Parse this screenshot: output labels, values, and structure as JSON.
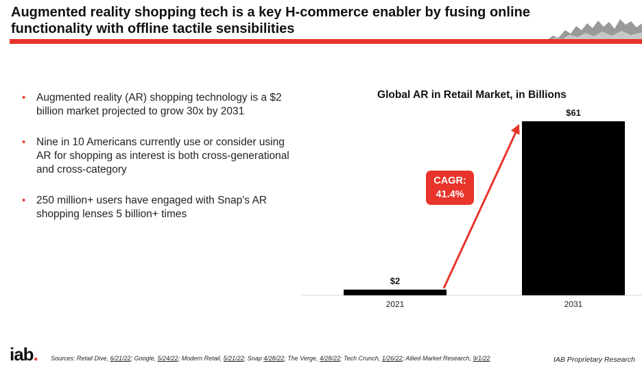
{
  "slide": {
    "title": "Augmented reality shopping tech is a key H-commerce enabler by fusing online functionality with offline tactile sensibilities",
    "accent_color": "#e8342a"
  },
  "bullets": [
    "Augmented reality (AR) shopping technology is a $2 billion market projected to grow 30x by 2031",
    "Nine in 10 Americans currently use or consider using AR for shopping as interest is both cross-generational and cross-category",
    "250 million+ users have engaged with Snap's AR shopping lenses 5 billion+ times"
  ],
  "chart_data": {
    "type": "bar",
    "title": "Global AR in Retail Market, in Billions",
    "categories": [
      "2021",
      "2031"
    ],
    "values": [
      2,
      61
    ],
    "data_labels": [
      "$2",
      "$61"
    ],
    "xlabel": "",
    "ylabel": "",
    "ylim": [
      0,
      61
    ],
    "grid": false,
    "bar_color": "#000000",
    "annotation": {
      "line1": "CAGR:",
      "line2": "41.4%",
      "color": "#e8342a"
    }
  },
  "footer": {
    "logo_text": "iab",
    "logo_dot": ".",
    "sources_prefix": "Sources: ",
    "sources": [
      {
        "name": "Retail Dive, ",
        "date": "6/21/22"
      },
      {
        "name": "; Google, ",
        "date": "5/24/22"
      },
      {
        "name": "; Modern Retail, ",
        "date": "5/21/22"
      },
      {
        "name": "; Snap ",
        "date": "4/28/22"
      },
      {
        "name": "; The Verge, ",
        "date": "4/28/22"
      },
      {
        "name": "; Tech Crunch, ",
        "date": "1/26/22"
      },
      {
        "name": "; Allied Market Research, ",
        "date": "9/1/22"
      }
    ],
    "proprietary": "IAB Proprietary Research"
  }
}
